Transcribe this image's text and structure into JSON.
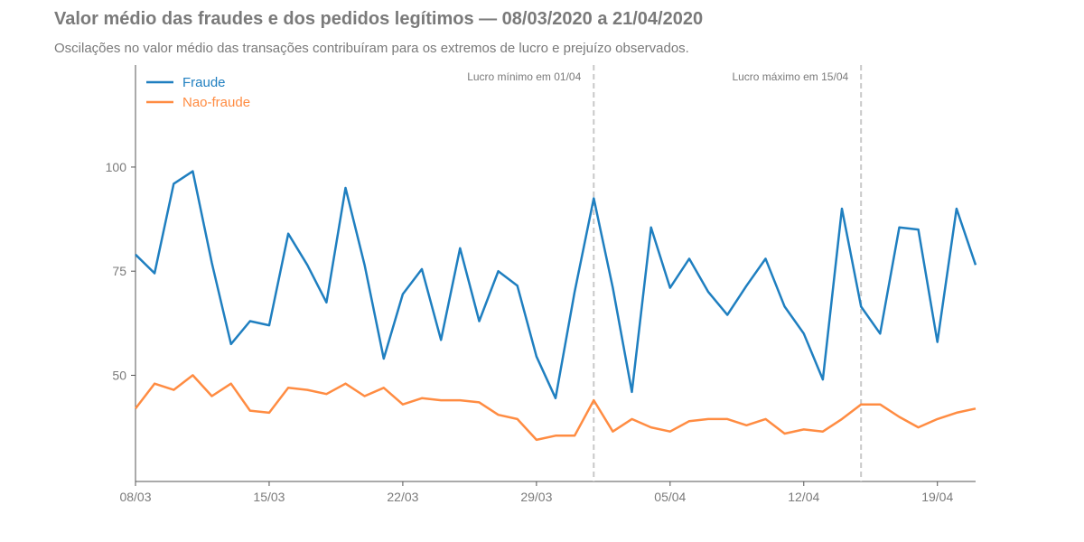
{
  "header": {
    "title": "Valor médio das fraudes e dos pedidos legítimos — 08/03/2020 a 21/04/2020",
    "subtitle": "Oscilações no valor médio das transações contribuíram para os extremos de lucro e prejuízo observados."
  },
  "chart_data": {
    "type": "line",
    "title": "Valor médio das fraudes e dos pedidos legítimos — 08/03/2020 a 21/04/2020",
    "subtitle": "Oscilações no valor médio das transações contribuíram para os extremos de lucro e prejuízo observados.",
    "xlabel": "",
    "ylabel": "",
    "x": [
      "08/03",
      "09/03",
      "10/03",
      "11/03",
      "12/03",
      "13/03",
      "14/03",
      "15/03",
      "16/03",
      "17/03",
      "18/03",
      "19/03",
      "20/03",
      "21/03",
      "22/03",
      "23/03",
      "24/03",
      "25/03",
      "26/03",
      "27/03",
      "28/03",
      "29/03",
      "30/03",
      "31/03",
      "01/04",
      "02/04",
      "03/04",
      "04/04",
      "05/04",
      "06/04",
      "07/04",
      "08/04",
      "09/04",
      "10/04",
      "11/04",
      "12/04",
      "13/04",
      "14/04",
      "15/04",
      "16/04",
      "17/04",
      "18/04",
      "19/04",
      "20/04",
      "21/04"
    ],
    "xticks": [
      "08/03",
      "15/03",
      "22/03",
      "29/03",
      "05/04",
      "12/04",
      "19/04"
    ],
    "yticks": [
      50,
      75,
      100
    ],
    "ylim": [
      24.5,
      124.5
    ],
    "grid": false,
    "legend_position": "top-left",
    "series": [
      {
        "name": "Fraude",
        "color": "#1f7fc0",
        "values": [
          79,
          74.5,
          96,
          99,
          77,
          57.5,
          63,
          62,
          84,
          76.5,
          67.5,
          95,
          76.5,
          54,
          69.5,
          75.5,
          58.5,
          80.5,
          63,
          75,
          71.5,
          54.5,
          44.5,
          70,
          92.5,
          71,
          46,
          85.5,
          71,
          78,
          70,
          64.5,
          71.5,
          78,
          66.5,
          60,
          49,
          90,
          66.5,
          60,
          85.5,
          85,
          58,
          90,
          76.5
        ]
      },
      {
        "name": "Nao-fraude",
        "color": "#ff8c42",
        "values": [
          42,
          48,
          46.5,
          50,
          45,
          48,
          41.5,
          41,
          47,
          46.5,
          45.5,
          48,
          45,
          47,
          43,
          44.5,
          44,
          44,
          43.5,
          40.5,
          39.5,
          34.5,
          35.5,
          35.5,
          44,
          36.5,
          39.5,
          37.5,
          36.5,
          39,
          39.5,
          39.5,
          38,
          39.5,
          36,
          37,
          36.5,
          39.5,
          43,
          43,
          40,
          37.5,
          39.5,
          41,
          42
        ]
      }
    ],
    "annotations": [
      {
        "x": "01/04",
        "label": "Lucro mínimo em 01/04"
      },
      {
        "x": "15/04",
        "label": "Lucro máximo em 15/04"
      }
    ]
  }
}
